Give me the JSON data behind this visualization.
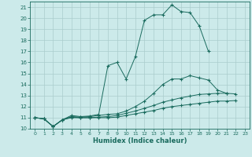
{
  "xlabel": "Humidex (Indice chaleur)",
  "background_color": "#cceaea",
  "grid_color": "#aacccc",
  "line_color": "#1a6b5e",
  "xlim": [
    -0.5,
    23.5
  ],
  "ylim": [
    10,
    21.5
  ],
  "yticks": [
    10,
    11,
    12,
    13,
    14,
    15,
    16,
    17,
    18,
    19,
    20,
    21
  ],
  "xticks": [
    0,
    1,
    2,
    3,
    4,
    5,
    6,
    7,
    8,
    9,
    10,
    11,
    12,
    13,
    14,
    15,
    16,
    17,
    18,
    19,
    20,
    21,
    22,
    23
  ],
  "line1_x": [
    0,
    1,
    2,
    3,
    4,
    5,
    6,
    7,
    8,
    9,
    10,
    11,
    12,
    13,
    14,
    15,
    16,
    17,
    18,
    19
  ],
  "line1_y": [
    11.0,
    10.9,
    10.2,
    10.8,
    11.2,
    11.1,
    11.15,
    11.3,
    15.7,
    16.0,
    14.5,
    16.5,
    19.8,
    20.3,
    20.3,
    21.2,
    20.6,
    20.5,
    19.3,
    17.0
  ],
  "line2_x": [
    0,
    1,
    2,
    3,
    4,
    5,
    6,
    7,
    8,
    9,
    10,
    11,
    12,
    13,
    14,
    15,
    16,
    17,
    18,
    19,
    20,
    21
  ],
  "line2_y": [
    11.0,
    10.9,
    10.2,
    10.8,
    11.1,
    11.05,
    11.1,
    11.2,
    11.3,
    11.35,
    11.6,
    12.0,
    12.5,
    13.2,
    14.0,
    14.5,
    14.5,
    14.8,
    14.6,
    14.4,
    13.5,
    13.2
  ],
  "line3_x": [
    0,
    1,
    2,
    3,
    4,
    5,
    6,
    7,
    8,
    9,
    10,
    11,
    12,
    13,
    14,
    15,
    16,
    17,
    18,
    19,
    20,
    21,
    22
  ],
  "line3_y": [
    11.0,
    10.9,
    10.2,
    10.8,
    11.05,
    11.0,
    11.0,
    11.05,
    11.1,
    11.2,
    11.4,
    11.6,
    11.85,
    12.1,
    12.4,
    12.6,
    12.8,
    12.95,
    13.1,
    13.15,
    13.2,
    13.2,
    13.15
  ],
  "line4_x": [
    0,
    1,
    2,
    3,
    4,
    5,
    6,
    7,
    8,
    9,
    10,
    11,
    12,
    13,
    14,
    15,
    16,
    17,
    18,
    19,
    20,
    21,
    22
  ],
  "line4_y": [
    11.0,
    10.9,
    10.2,
    10.8,
    11.0,
    11.0,
    11.0,
    11.0,
    11.0,
    11.05,
    11.2,
    11.35,
    11.5,
    11.65,
    11.85,
    12.0,
    12.1,
    12.2,
    12.3,
    12.4,
    12.5,
    12.5,
    12.55
  ]
}
